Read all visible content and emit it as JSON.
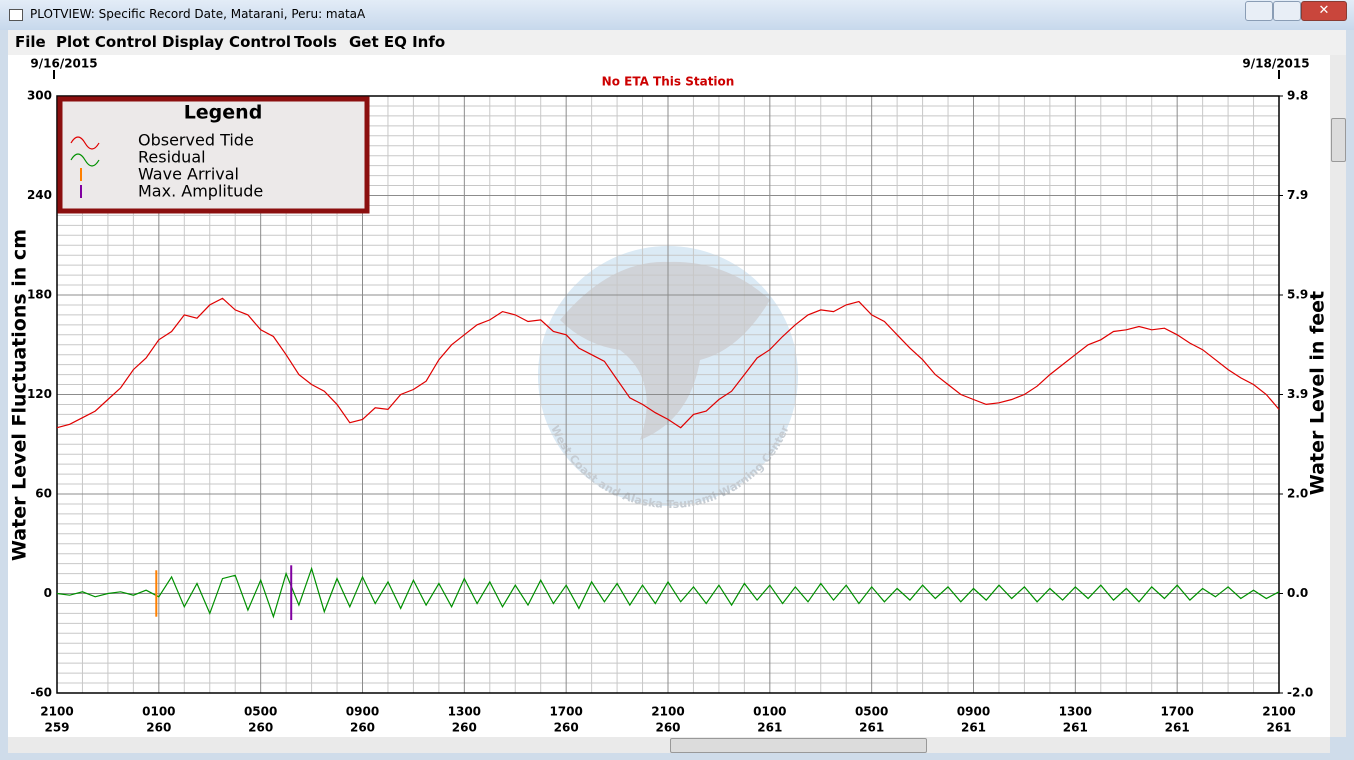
{
  "window": {
    "title": "PLOTVIEW: Specific Record Date, Matarani, Peru: mataA"
  },
  "menu": [
    "File",
    "Plot Control",
    "Display Control",
    "Tools",
    "Get EQ Info"
  ],
  "chart_data": {
    "type": "line",
    "annotation": "No ETA This Station",
    "start_date": "9/16/2015",
    "end_date": "9/18/2015",
    "watermark": "West Coast and Alaska Tsunami Warning Center",
    "ylabel": "Water Level Fluctuations in cm",
    "y2label": "Water Level in feet",
    "legend_title": "Legend",
    "legend": "upper left",
    "grid": true,
    "x": [
      0,
      0.5,
      1,
      1.5,
      2,
      2.5,
      3,
      3.5,
      4,
      4.5,
      5,
      5.5,
      6,
      6.5,
      7,
      7.5,
      8,
      8.5,
      9,
      9.5,
      10,
      10.5,
      11,
      11.5,
      12,
      12.5,
      13,
      13.5,
      14,
      14.5,
      15,
      15.5,
      16,
      16.5,
      17,
      17.5,
      18,
      18.5,
      19,
      19.5,
      20,
      20.5,
      21,
      21.5,
      22,
      22.5,
      23,
      23.5,
      24,
      24.5,
      25,
      25.5,
      26,
      26.5,
      27,
      27.5,
      28,
      28.5,
      29,
      29.5,
      30,
      30.5,
      31,
      31.5,
      32,
      32.5,
      33,
      33.5,
      34,
      34.5,
      35,
      35.5,
      36,
      36.5,
      37,
      37.5,
      38,
      38.5,
      39,
      39.5,
      40,
      40.5,
      41,
      41.5,
      42,
      42.5,
      43,
      43.5,
      44,
      44.5,
      45,
      45.5,
      46,
      46.5,
      47,
      47.5,
      48
    ],
    "xlim": [
      0,
      48
    ],
    "xticks": [
      {
        "value": 0,
        "label": "2100"
      },
      {
        "value": 4,
        "label": "0100"
      },
      {
        "value": 8,
        "label": "0500"
      },
      {
        "value": 12,
        "label": "0900"
      },
      {
        "value": 16,
        "label": "1300"
      },
      {
        "value": 20,
        "label": "1700"
      },
      {
        "value": 24,
        "label": "2100"
      },
      {
        "value": 28,
        "label": "0100"
      },
      {
        "value": 32,
        "label": "0500"
      },
      {
        "value": 36,
        "label": "0900"
      },
      {
        "value": 40,
        "label": "1300"
      },
      {
        "value": 44,
        "label": "1700"
      },
      {
        "value": 48,
        "label": "2100"
      }
    ],
    "xtick_days": [
      "259",
      "260",
      "260",
      "260",
      "260",
      "260",
      "260",
      "261",
      "261",
      "261",
      "261",
      "261",
      "261"
    ],
    "ylim": [
      -60,
      300
    ],
    "yticks": [
      -60,
      0,
      60,
      120,
      180,
      240,
      300
    ],
    "y2lim": [
      -1.9685,
      9.8425
    ],
    "y2ticks": [
      {
        "value": -1.9685,
        "label": "-2.0"
      },
      {
        "value": 0,
        "label": "0.0"
      },
      {
        "value": 1.9685,
        "label": "2.0"
      },
      {
        "value": 3.937,
        "label": "3.9"
      },
      {
        "value": 5.9055,
        "label": "5.9"
      },
      {
        "value": 7.874,
        "label": "7.9"
      },
      {
        "value": 9.8425,
        "label": "9.8"
      }
    ],
    "series": [
      {
        "name": "Observed Tide",
        "color": "#e00000",
        "values": [
          100,
          102,
          106,
          110,
          117,
          124,
          135,
          142,
          153,
          158,
          168,
          166,
          174,
          178,
          171,
          168,
          159,
          155,
          144,
          132,
          126,
          122,
          114,
          103,
          105,
          112,
          111,
          120,
          123,
          128,
          141,
          150,
          156,
          162,
          165,
          170,
          168,
          164,
          165,
          158,
          156,
          148,
          144,
          140,
          129,
          118,
          114,
          109,
          105,
          100,
          108,
          110,
          117,
          122,
          132,
          142,
          147,
          155,
          162,
          168,
          171,
          170,
          174,
          176,
          168,
          164,
          156,
          148,
          141,
          132,
          126,
          120,
          117,
          114,
          115,
          117,
          120,
          125,
          132,
          138,
          144,
          150,
          153,
          158,
          159,
          161,
          159,
          160,
          156,
          151,
          147,
          141,
          135,
          130,
          126,
          120,
          111
        ]
      },
      {
        "name": "Residual",
        "color": "#009000",
        "values": [
          0,
          -1,
          1,
          -2,
          0,
          1,
          -1,
          2,
          -2,
          10,
          -8,
          6,
          -12,
          9,
          11,
          -10,
          8,
          -14,
          12,
          -7,
          15,
          -11,
          9,
          -8,
          10,
          -6,
          7,
          -9,
          8,
          -7,
          6,
          -8,
          9,
          -6,
          7,
          -8,
          5,
          -7,
          8,
          -6,
          5,
          -9,
          7,
          -5,
          6,
          -7,
          5,
          -6,
          7,
          -5,
          4,
          -6,
          5,
          -7,
          6,
          -4,
          5,
          -6,
          4,
          -5,
          6,
          -4,
          5,
          -6,
          4,
          -5,
          3,
          -4,
          5,
          -3,
          4,
          -5,
          3,
          -4,
          5,
          -3,
          4,
          -5,
          3,
          -4,
          4,
          -3,
          5,
          -4,
          3,
          -5,
          4,
          -3,
          5,
          -4,
          3,
          -2,
          4,
          -3,
          2,
          -3,
          1
        ]
      }
    ],
    "markers": [
      {
        "name": "Wave Arrival",
        "color": "#ff8000",
        "x": 3.9,
        "low": -14,
        "high": 14
      },
      {
        "name": "Max. Amplitude",
        "color": "#8000a0",
        "x": 9.2,
        "low": -16,
        "high": 17
      }
    ]
  }
}
